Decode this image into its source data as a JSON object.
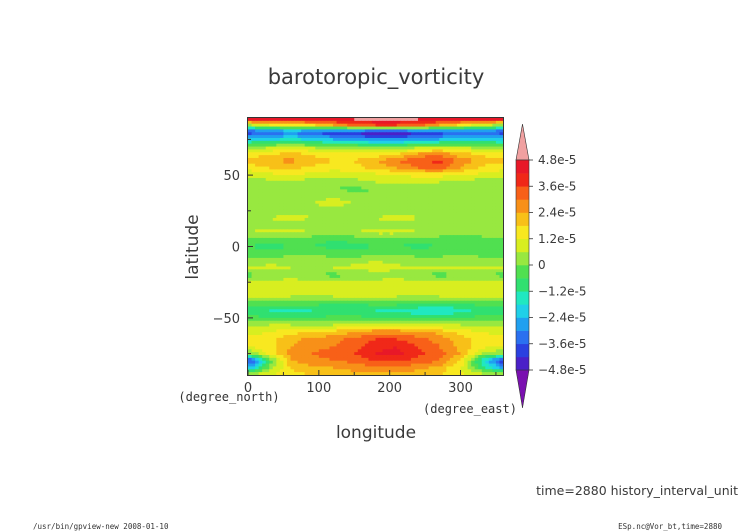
{
  "chart_data": {
    "type": "heatmap",
    "title": "barotoropic_vorticity",
    "xlabel": "longitude",
    "ylabel": "latitude",
    "x_unit_label": "(degree_east)",
    "y_unit_label": "(degree_north)",
    "xlim": [
      0,
      360
    ],
    "ylim": [
      -90,
      90
    ],
    "x_ticks": [
      0,
      100,
      200,
      300
    ],
    "y_ticks": [
      50,
      0,
      -50
    ],
    "x_tick_labels": [
      "0",
      "100",
      "200",
      "300"
    ],
    "y_tick_labels": [
      "50",
      "0",
      "−50"
    ],
    "colorbar": {
      "labels": [
        "4.8e-5",
        "3.6e-5",
        "2.4e-5",
        "1.2e-5",
        "0",
        "−1.2e-5",
        "−2.4e-5",
        "−3.6e-5",
        "−4.8e-5"
      ],
      "levels": [
        -4.8e-05,
        -4.2e-05,
        -3.6e-05,
        -3e-05,
        -2.4e-05,
        -1.8e-05,
        -1.2e-05,
        -6e-06,
        0,
        6e-06,
        1.2e-05,
        1.8e-05,
        2.4e-05,
        3e-05,
        3.6e-05,
        4.2e-05,
        4.8e-05
      ],
      "colors": [
        "#7a10b0",
        "#4a20c8",
        "#2a40e0",
        "#2a70f0",
        "#20a0f0",
        "#20d0e8",
        "#20e8c0",
        "#30e070",
        "#50e050",
        "#98e840",
        "#d8ee20",
        "#f8e820",
        "#f8c018",
        "#f89018",
        "#f86018",
        "#f02818",
        "#e81828",
        "#f0a0a0"
      ]
    },
    "lat": [
      90,
      85,
      80,
      75,
      70,
      65,
      60,
      55,
      50,
      45,
      40,
      35,
      30,
      25,
      20,
      15,
      10,
      5,
      0,
      -5,
      -10,
      -15,
      -20,
      -25,
      -30,
      -35,
      -40,
      -45,
      -50,
      -55,
      -60,
      -65,
      -70,
      -75,
      -80,
      -85,
      -90
    ],
    "lon": [
      0,
      30,
      60,
      90,
      120,
      150,
      180,
      210,
      240,
      270,
      300,
      330,
      360
    ],
    "values": [
      [
        5.2e-05,
        5.2e-05,
        5.2e-05,
        5.2e-05,
        5.2e-05,
        5.2e-05,
        5.2e-05,
        5.2e-05,
        5.2e-05,
        5.2e-05,
        5.2e-05,
        5.2e-05,
        5.2e-05
      ],
      [
        4e-06,
        1.2e-05,
        1.4e-05,
        1.6e-05,
        2.4e-05,
        3.2e-05,
        3.6e-05,
        3.6e-05,
        3.2e-05,
        2.4e-05,
        1.6e-05,
        8e-06,
        4e-06
      ],
      [
        -4e-05,
        -3.6e-05,
        -3.2e-05,
        -3.6e-05,
        -4.2e-05,
        -4.4e-05,
        -4.8e-05,
        -4.8e-05,
        -4.4e-05,
        -4e-05,
        -3.6e-05,
        -3.6e-05,
        -4e-05
      ],
      [
        -2.2e-05,
        -2e-05,
        -1.6e-05,
        -2e-05,
        -2.4e-05,
        -2.8e-05,
        -3e-05,
        -3e-05,
        -2.8e-05,
        -2.4e-05,
        -2e-05,
        -2e-05,
        -2.2e-05
      ],
      [
        2e-06,
        4e-06,
        6e-06,
        4e-06,
        2e-06,
        0.0,
        -2e-06,
        -2e-06,
        2e-06,
        6e-06,
        4e-06,
        2e-06,
        2e-06
      ],
      [
        1.4e-05,
        1.6e-05,
        2e-05,
        1.6e-05,
        1.4e-05,
        1.2e-05,
        1.2e-05,
        1.6e-05,
        2.4e-05,
        2.8e-05,
        2e-05,
        1.6e-05,
        1.4e-05
      ],
      [
        2e-05,
        2.4e-05,
        2.6e-05,
        2.2e-05,
        1.8e-05,
        1.8e-05,
        2.4e-05,
        3e-05,
        3.6e-05,
        3.8e-05,
        2.8e-05,
        2.2e-05,
        2e-05
      ],
      [
        1.4e-05,
        1.8e-05,
        2e-05,
        1.6e-05,
        1.4e-05,
        1.6e-05,
        2e-05,
        2.4e-05,
        3e-05,
        3.2e-05,
        2.4e-05,
        1.6e-05,
        1.4e-05
      ],
      [
        8e-06,
        1e-05,
        1.2e-05,
        1e-05,
        8e-06,
        8e-06,
        1e-05,
        1.2e-05,
        1.4e-05,
        1.4e-05,
        1.2e-05,
        1e-05,
        8e-06
      ],
      [
        2e-06,
        4e-06,
        4e-06,
        2e-06,
        2e-06,
        4e-06,
        6e-06,
        6e-06,
        6e-06,
        6e-06,
        4e-06,
        2e-06,
        2e-06
      ],
      [
        0.0,
        0.0,
        2e-06,
        2e-06,
        0.0,
        -2e-06,
        0.0,
        2e-06,
        2e-06,
        2e-06,
        0.0,
        0.0,
        0.0
      ],
      [
        4e-06,
        2e-06,
        2e-06,
        4e-06,
        6e-06,
        4e-06,
        2e-06,
        2e-06,
        4e-06,
        4e-06,
        2e-06,
        4e-06,
        4e-06
      ],
      [
        6e-06,
        4e-06,
        4e-06,
        6e-06,
        8e-06,
        6e-06,
        4e-06,
        4e-06,
        6e-06,
        6e-06,
        4e-06,
        6e-06,
        6e-06
      ],
      [
        2e-06,
        2e-06,
        4e-06,
        4e-06,
        2e-06,
        2e-06,
        2e-06,
        4e-06,
        4e-06,
        2e-06,
        2e-06,
        2e-06,
        2e-06
      ],
      [
        4e-06,
        6e-06,
        8e-06,
        6e-06,
        4e-06,
        4e-06,
        6e-06,
        8e-06,
        6e-06,
        4e-06,
        4e-06,
        4e-06,
        4e-06
      ],
      [
        2e-06,
        4e-06,
        4e-06,
        2e-06,
        2e-06,
        2e-06,
        4e-06,
        4e-06,
        4e-06,
        2e-06,
        2e-06,
        2e-06,
        2e-06
      ],
      [
        6e-06,
        8e-06,
        8e-06,
        6e-06,
        4e-06,
        6e-06,
        8e-06,
        8e-06,
        6e-06,
        6e-06,
        4e-06,
        6e-06,
        6e-06
      ],
      [
        -4e-06,
        -4e-06,
        -2e-06,
        -4e-06,
        -6e-06,
        -4e-06,
        -2e-06,
        -2e-06,
        -4e-06,
        -4e-06,
        -4e-06,
        -4e-06,
        -4e-06
      ],
      [
        -6e-06,
        -8e-06,
        -6e-06,
        -6e-06,
        -8e-06,
        -8e-06,
        -6e-06,
        -6e-06,
        -8e-06,
        -6e-06,
        -6e-06,
        -6e-06,
        -6e-06
      ],
      [
        -2e-06,
        -4e-06,
        -2e-06,
        0.0,
        -2e-06,
        -4e-06,
        -2e-06,
        0.0,
        -2e-06,
        -2e-06,
        0.0,
        -2e-06,
        -2e-06
      ],
      [
        2e-06,
        4e-06,
        4e-06,
        2e-06,
        2e-06,
        4e-06,
        6e-06,
        4e-06,
        2e-06,
        2e-06,
        4e-06,
        2e-06,
        2e-06
      ],
      [
        6e-06,
        8e-06,
        6e-06,
        4e-06,
        6e-06,
        8e-06,
        1e-05,
        8e-06,
        6e-06,
        6e-06,
        6e-06,
        6e-06,
        6e-06
      ],
      [
        -2e-06,
        0.0,
        2e-06,
        0.0,
        -2e-06,
        0.0,
        2e-06,
        2e-06,
        0.0,
        -2e-06,
        0.0,
        0.0,
        -2e-06
      ],
      [
        6e-06,
        8e-06,
        1e-05,
        8e-06,
        6e-06,
        6e-06,
        8e-06,
        1e-05,
        8e-06,
        6e-06,
        6e-06,
        6e-06,
        6e-06
      ],
      [
        1e-05,
        1.2e-05,
        1.2e-05,
        1e-05,
        8e-06,
        1e-05,
        1.2e-05,
        1.2e-05,
        1e-05,
        8e-06,
        1e-05,
        1e-05,
        1e-05
      ],
      [
        6e-06,
        8e-06,
        6e-06,
        4e-06,
        6e-06,
        8e-06,
        8e-06,
        6e-06,
        4e-06,
        6e-06,
        8e-06,
        6e-06,
        6e-06
      ],
      [
        -4e-06,
        -2e-06,
        -2e-06,
        -4e-06,
        -6e-06,
        -6e-06,
        -4e-06,
        -4e-06,
        -6e-06,
        -8e-06,
        -6e-06,
        -4e-06,
        -4e-06
      ],
      [
        -8e-06,
        -1.2e-05,
        -1.4e-05,
        -1.2e-05,
        -1e-05,
        -1e-05,
        -1.2e-05,
        -1.4e-05,
        -1.6e-05,
        -1.8e-05,
        -1.4e-05,
        -1e-05,
        -8e-06
      ],
      [
        -4e-06,
        -6e-06,
        -8e-06,
        -6e-06,
        -4e-06,
        -4e-06,
        -6e-06,
        -6e-06,
        -8e-06,
        -8e-06,
        -6e-06,
        -4e-06,
        -4e-06
      ],
      [
        4e-06,
        6e-06,
        6e-06,
        4e-06,
        6e-06,
        8e-06,
        1e-05,
        1e-05,
        8e-06,
        6e-06,
        6e-06,
        4e-06,
        4e-06
      ],
      [
        1e-05,
        1.2e-05,
        1.6e-05,
        1.8e-05,
        2e-05,
        2.4e-05,
        2.8e-05,
        2.8e-05,
        2.6e-05,
        2.2e-05,
        1.6e-05,
        1.2e-05,
        1e-05
      ],
      [
        1.4e-05,
        1.6e-05,
        2.2e-05,
        2.6e-05,
        2.8e-05,
        3.2e-05,
        3.6e-05,
        3.6e-05,
        3.2e-05,
        2.8e-05,
        2e-05,
        1.6e-05,
        1.4e-05
      ],
      [
        1.2e-05,
        1.6e-05,
        2.4e-05,
        2.8e-05,
        3e-05,
        3.4e-05,
        4e-05,
        4.2e-05,
        3.6e-05,
        3e-05,
        2.2e-05,
        1.4e-05,
        1.2e-05
      ],
      [
        0.0,
        1.4e-05,
        2.6e-05,
        3e-05,
        3.2e-05,
        3.6e-05,
        4.2e-05,
        4.4e-05,
        3.8e-05,
        3.2e-05,
        2.4e-05,
        6e-06,
        0.0
      ],
      [
        -4.2e-05,
        -6e-06,
        2.4e-05,
        2.8e-05,
        3e-05,
        3.2e-05,
        3.6e-05,
        3.8e-05,
        3.4e-05,
        3e-05,
        1.8e-05,
        -1.6e-05,
        -4.2e-05
      ],
      [
        -2.6e-05,
        2e-06,
        1.8e-05,
        2.2e-05,
        2.4e-05,
        2.6e-05,
        2.8e-05,
        2.8e-05,
        2.6e-05,
        2.2e-05,
        1.2e-05,
        -8e-06,
        -2.6e-05
      ],
      [
        8e-06,
        1.2e-05,
        1.6e-05,
        1.8e-05,
        2e-05,
        2.2e-05,
        2.2e-05,
        2.2e-05,
        2e-05,
        1.8e-05,
        1.4e-05,
        1e-05,
        8e-06
      ]
    ]
  },
  "footer": {
    "time_label": "time=2880 history_interval_unit",
    "left_note": "/usr/bin/gpview-new  2008-01-10",
    "right_note": "ESp.nc@Vor_bt,time=2880"
  }
}
